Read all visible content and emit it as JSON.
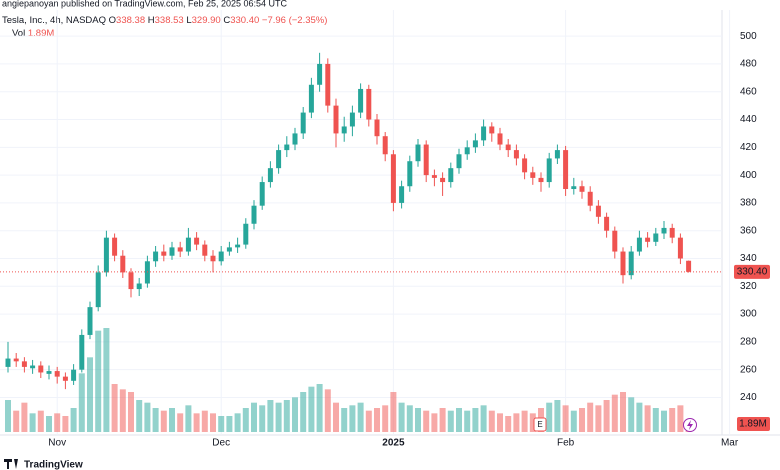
{
  "header": {
    "publisher": "angiepanoyan published on TradingView.com, Feb 25, 2025 06:54 UTC",
    "footer_logo": "TradingView"
  },
  "chart_data": {
    "type": "candlestick",
    "legend": {
      "symbol": "Tesla, Inc., 4h, NASDAQ",
      "keys": [
        "O",
        "H",
        "L",
        "C"
      ],
      "change": "−7.96 (−2.35%)",
      "volume_key": "Vol"
    },
    "categories": [
      null,
      null,
      null,
      null,
      null,
      null,
      "Nov",
      null,
      null,
      null,
      null,
      null,
      null,
      null,
      null,
      null,
      null,
      null,
      null,
      null,
      null,
      null,
      null,
      null,
      null,
      null,
      "Dec",
      null,
      null,
      null,
      null,
      null,
      null,
      null,
      null,
      null,
      null,
      null,
      null,
      null,
      null,
      null,
      null,
      null,
      null,
      null,
      null,
      "2025",
      null,
      null,
      null,
      null,
      null,
      null,
      null,
      null,
      null,
      null,
      null,
      null,
      null,
      null,
      null,
      null,
      null,
      null,
      null,
      null,
      "Feb",
      null,
      null,
      null,
      null,
      null,
      null,
      null,
      null,
      null,
      null,
      null,
      null,
      null,
      null,
      null,
      null,
      null,
      null,
      null,
      "Mar"
    ],
    "open": [
      262,
      268,
      266,
      261,
      263,
      257,
      259,
      255,
      252,
      260,
      285,
      305,
      330,
      355,
      342,
      330,
      318,
      322,
      338,
      345,
      342,
      348,
      345,
      355,
      350,
      342,
      338,
      345,
      348,
      350,
      365,
      378,
      395,
      405,
      418,
      422,
      430,
      445,
      465,
      480,
      450,
      430,
      435,
      445,
      462,
      440,
      428,
      415,
      380,
      392,
      410,
      422,
      400,
      398,
      395,
      405,
      415,
      420,
      425,
      435,
      430,
      422,
      418,
      412,
      402,
      398,
      395,
      412,
      418,
      390,
      392,
      388,
      378,
      370,
      360,
      345,
      328,
      345,
      355,
      352,
      358,
      362,
      355,
      338.38,
      null,
      null,
      null,
      null,
      null
    ],
    "high": [
      280,
      272,
      269,
      267,
      266,
      263,
      262,
      258,
      264,
      289,
      309,
      335,
      360,
      358,
      346,
      333,
      326,
      342,
      349,
      350,
      352,
      352,
      362,
      359,
      353,
      346,
      349,
      352,
      355,
      369,
      382,
      399,
      410,
      422,
      428,
      434,
      449,
      470,
      488,
      484,
      455,
      442,
      450,
      466,
      465,
      444,
      431,
      418,
      396,
      414,
      426,
      425,
      404,
      402,
      409,
      419,
      425,
      430,
      440,
      438,
      434,
      426,
      422,
      415,
      406,
      402,
      416,
      422,
      421,
      398,
      396,
      392,
      382,
      373,
      363,
      348,
      349,
      360,
      359,
      362,
      367,
      365,
      358,
      338.53,
      null,
      null,
      null,
      null,
      null
    ],
    "low": [
      258,
      262,
      258,
      257,
      254,
      253,
      250,
      246,
      249,
      258,
      282,
      302,
      327,
      338,
      326,
      312,
      313,
      319,
      334,
      338,
      339,
      341,
      342,
      346,
      338,
      330,
      335,
      342,
      344,
      347,
      361,
      375,
      391,
      401,
      413,
      418,
      426,
      441,
      460,
      445,
      420,
      424,
      428,
      441,
      435,
      422,
      410,
      374,
      376,
      388,
      406,
      395,
      392,
      385,
      391,
      401,
      411,
      416,
      421,
      424,
      418,
      413,
      407,
      397,
      393,
      388,
      391,
      408,
      385,
      386,
      383,
      374,
      365,
      355,
      340,
      322,
      325,
      342,
      348,
      349,
      354,
      351,
      336,
      329.9,
      null,
      null,
      null,
      null,
      null
    ],
    "close": [
      268,
      266,
      262,
      263,
      258,
      259,
      255,
      252,
      260,
      285,
      305,
      330,
      355,
      342,
      330,
      318,
      322,
      338,
      345,
      342,
      348,
      345,
      355,
      350,
      342,
      338,
      345,
      348,
      350,
      365,
      378,
      395,
      405,
      418,
      422,
      430,
      445,
      465,
      480,
      450,
      430,
      435,
      445,
      462,
      440,
      428,
      415,
      380,
      392,
      410,
      422,
      400,
      398,
      395,
      405,
      415,
      420,
      425,
      435,
      430,
      422,
      418,
      412,
      402,
      398,
      395,
      412,
      418,
      390,
      392,
      388,
      378,
      370,
      360,
      345,
      328,
      345,
      355,
      352,
      358,
      362,
      355,
      340,
      330.4,
      null,
      null,
      null,
      null,
      null
    ],
    "low_value_labels": [
      null,
      null,
      null,
      null,
      null,
      null,
      null,
      null,
      null,
      null,
      null,
      null,
      null,
      null,
      null,
      null,
      null,
      null,
      null,
      null,
      null,
      null,
      null,
      null,
      null,
      null,
      null,
      null,
      null,
      null,
      null,
      null,
      null,
      null,
      null,
      null,
      null,
      null,
      null,
      null,
      null,
      null,
      null,
      null,
      null,
      null,
      null,
      null,
      null,
      null,
      null,
      null,
      null,
      null,
      null,
      null,
      null,
      null,
      null,
      null,
      null,
      null,
      null,
      null,
      null,
      null,
      null,
      null,
      null,
      null,
      null,
      null,
      null,
      null,
      null,
      null,
      null,
      null,
      null,
      null,
      null,
      null,
      null,
      "329.90",
      null,
      null,
      null,
      null,
      null
    ],
    "close_value_labels": [
      null,
      null,
      null,
      null,
      null,
      null,
      null,
      null,
      null,
      null,
      null,
      null,
      null,
      null,
      null,
      null,
      null,
      null,
      null,
      null,
      null,
      null,
      null,
      null,
      null,
      null,
      null,
      null,
      null,
      null,
      null,
      null,
      null,
      null,
      null,
      null,
      null,
      null,
      null,
      null,
      null,
      null,
      null,
      null,
      null,
      null,
      null,
      null,
      null,
      null,
      null,
      null,
      null,
      null,
      null,
      null,
      null,
      null,
      null,
      null,
      null,
      null,
      null,
      null,
      null,
      null,
      null,
      null,
      null,
      null,
      null,
      null,
      null,
      null,
      null,
      null,
      null,
      null,
      null,
      null,
      null,
      null,
      null,
      "330.40",
      null,
      null,
      null,
      null,
      null
    ],
    "volume": [
      60,
      40,
      55,
      35,
      40,
      30,
      35,
      30,
      45,
      110,
      140,
      190,
      195,
      90,
      80,
      75,
      60,
      55,
      45,
      40,
      45,
      35,
      50,
      35,
      40,
      35,
      30,
      30,
      35,
      45,
      55,
      50,
      60,
      55,
      60,
      65,
      75,
      85,
      90,
      80,
      55,
      45,
      50,
      55,
      40,
      45,
      50,
      75,
      55,
      50,
      45,
      40,
      35,
      45,
      40,
      45,
      40,
      45,
      50,
      40,
      35,
      30,
      35,
      40,
      35,
      45,
      55,
      60,
      50,
      40,
      45,
      55,
      50,
      60,
      70,
      75,
      65,
      55,
      50,
      45,
      40,
      45,
      50,
      1.89,
      null,
      null,
      null,
      null,
      null
    ],
    "volume_value_labels": [
      null,
      null,
      null,
      null,
      null,
      null,
      null,
      null,
      null,
      null,
      null,
      null,
      null,
      null,
      null,
      null,
      null,
      null,
      null,
      null,
      null,
      null,
      null,
      null,
      null,
      null,
      null,
      null,
      null,
      null,
      null,
      null,
      null,
      null,
      null,
      null,
      null,
      null,
      null,
      null,
      null,
      null,
      null,
      null,
      null,
      null,
      null,
      null,
      null,
      null,
      null,
      null,
      null,
      null,
      null,
      null,
      null,
      null,
      null,
      null,
      null,
      null,
      null,
      null,
      null,
      null,
      null,
      null,
      null,
      null,
      null,
      null,
      null,
      null,
      null,
      null,
      null,
      null,
      null,
      null,
      null,
      null,
      null,
      "1.89M",
      null,
      null,
      null,
      null,
      null
    ],
    "up_color": "#26a69a",
    "down_color": "#ef5350",
    "ylim": [
      213,
      526
    ],
    "yticks": [
      240,
      260,
      280,
      300,
      320,
      340,
      360,
      380,
      400,
      420,
      440,
      460,
      480,
      500
    ],
    "volume_ylim": [
      0,
      300
    ],
    "grid": true
  }
}
